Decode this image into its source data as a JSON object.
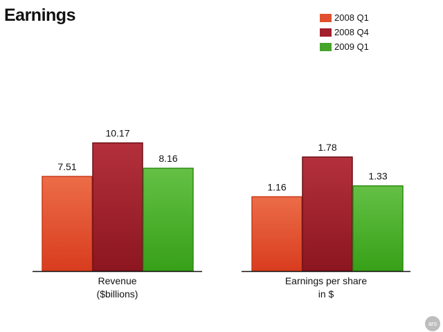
{
  "title": "Earnings",
  "chart_data": {
    "type": "bar",
    "title": "Earnings",
    "series": [
      {
        "name": "2008 Q1",
        "color": "#e0502e"
      },
      {
        "name": "2008 Q4",
        "color": "#a31f2c"
      },
      {
        "name": "2009 Q1",
        "color": "#45a52a"
      }
    ],
    "groups": [
      {
        "label_lines": [
          "Revenue",
          "($billions)"
        ],
        "values": [
          7.51,
          10.17,
          8.16
        ],
        "value_labels": [
          "7.51",
          "10.17",
          "8.16"
        ]
      },
      {
        "label_lines": [
          "Earnings per share",
          "in $"
        ],
        "values": [
          1.16,
          1.78,
          1.33
        ],
        "value_labels": [
          "1.16",
          "1.78",
          "1.33"
        ]
      }
    ]
  },
  "badge": "ars"
}
